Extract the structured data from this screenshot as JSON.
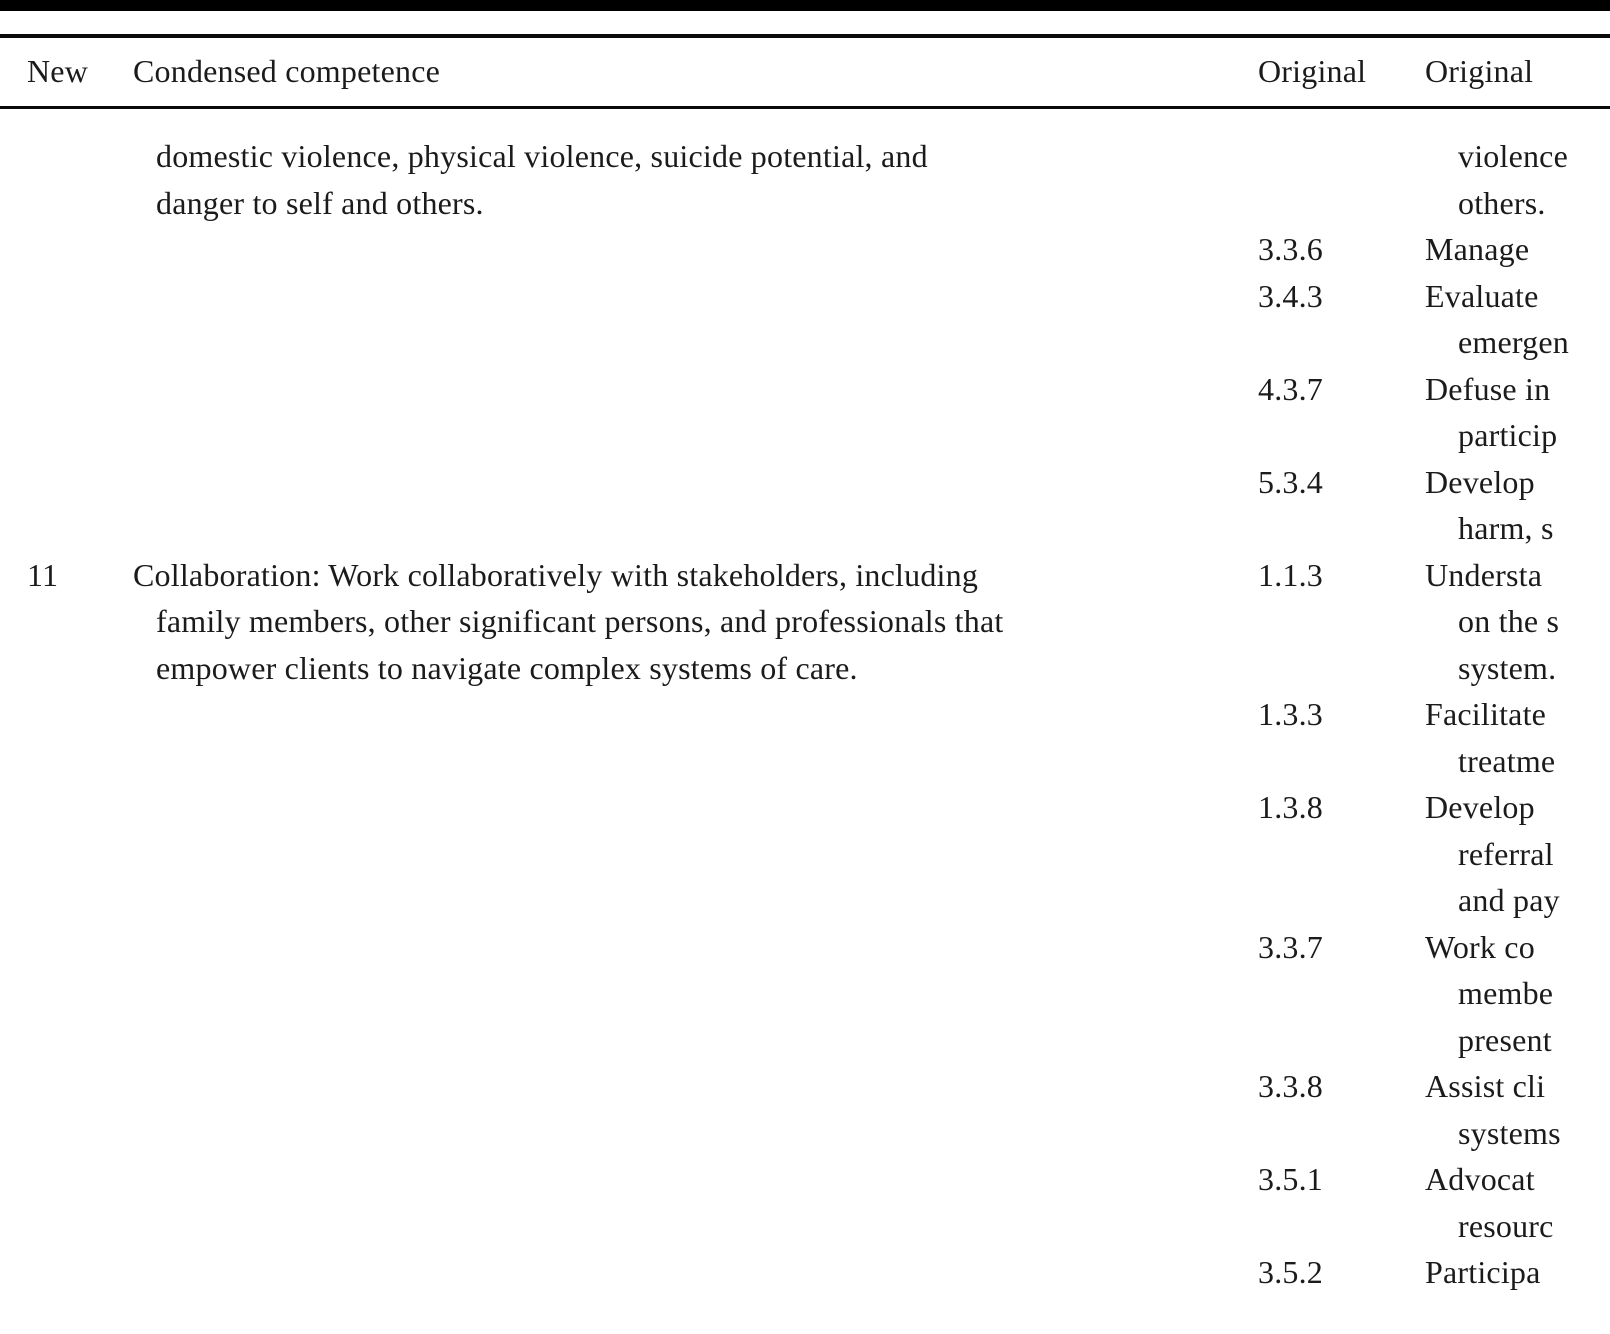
{
  "page": {
    "background": "#ffffff",
    "text_color": "#1b1b1b",
    "rule_color": "#0a0a0a"
  },
  "table": {
    "headers": {
      "new": "New",
      "condensed": "Condensed competence",
      "original_number": "Original",
      "original_competence": "Original"
    },
    "rows": [
      {
        "new": "",
        "condensed_lines": [
          "domestic violence, physical violence, suicide potential, and",
          "danger to self and others."
        ],
        "originals": [
          {
            "num": "",
            "lines": [
              "violence",
              "others."
            ]
          },
          {
            "num": "3.3.6",
            "lines": [
              "Manage"
            ]
          },
          {
            "num": "3.4.3",
            "lines": [
              "Evaluate",
              "emergen"
            ]
          },
          {
            "num": "4.3.7",
            "lines": [
              "Defuse in",
              "particip"
            ]
          },
          {
            "num": "5.3.4",
            "lines": [
              "Develop",
              "harm, s"
            ]
          }
        ]
      },
      {
        "new": "11",
        "condensed_lines": [
          "Collaboration: Work collaboratively with stakeholders, including",
          "family members, other significant persons, and professionals that",
          "empower clients to navigate complex systems of care."
        ],
        "originals": [
          {
            "num": "1.1.3",
            "lines": [
              "Understa",
              "on the s",
              "system."
            ]
          },
          {
            "num": "1.3.3",
            "lines": [
              "Facilitate",
              "treatme"
            ]
          },
          {
            "num": "1.3.8",
            "lines": [
              "Develop",
              "referral",
              "and pay"
            ]
          },
          {
            "num": "3.3.7",
            "lines": [
              "Work co",
              "membe",
              "present"
            ]
          },
          {
            "num": "3.3.8",
            "lines": [
              "Assist cli",
              "systems"
            ]
          },
          {
            "num": "3.5.1",
            "lines": [
              "Advocat",
              "resourc"
            ]
          },
          {
            "num": "3.5.2",
            "lines": [
              "Participa"
            ]
          }
        ]
      }
    ]
  }
}
